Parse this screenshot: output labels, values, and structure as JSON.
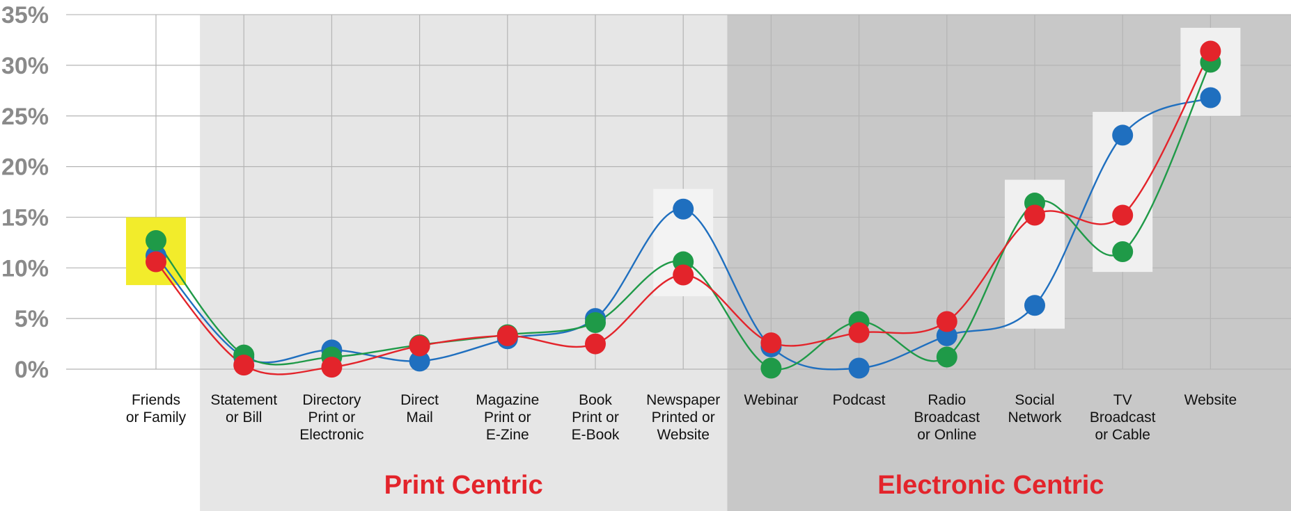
{
  "chart_data": {
    "type": "line",
    "title": "",
    "xlabel": "",
    "ylabel": "",
    "ylim": [
      0,
      35
    ],
    "y_ticks": [
      "0%",
      "5%",
      "10%",
      "15%",
      "20%",
      "25%",
      "30%",
      "35%"
    ],
    "grid": true,
    "legend": "none",
    "categories": [
      [
        "Friends",
        "or Family"
      ],
      [
        "Statement",
        "or Bill"
      ],
      [
        "Directory",
        "Print or",
        "Electronic"
      ],
      [
        "Direct",
        "Mail"
      ],
      [
        "Magazine",
        "Print or",
        "E-Zine"
      ],
      [
        "Book",
        "Print or",
        "E-Book"
      ],
      [
        "Newspaper",
        "Printed or",
        "Website"
      ],
      [
        "Webinar"
      ],
      [
        "Podcast"
      ],
      [
        "Radio",
        "Broadcast",
        "or Online"
      ],
      [
        "Social",
        "Network"
      ],
      [
        "TV",
        "Broadcast",
        "or Cable"
      ],
      [
        "Website"
      ]
    ],
    "groups": [
      {
        "label": "Print Centric",
        "from": 1,
        "to": 6,
        "color": "#e6e6e6"
      },
      {
        "label": "Electronic Centric",
        "from": 7,
        "to": 12,
        "color": "#c8c8c8"
      }
    ],
    "highlights": [
      {
        "index": 0,
        "range": [
          8.3,
          15.0
        ],
        "color": "#f2ec2b"
      },
      {
        "index": 6,
        "range": [
          7.2,
          17.8
        ],
        "color": "#f3f3f3"
      },
      {
        "index": 10,
        "range": [
          4.0,
          18.7
        ],
        "color": "#f0f0f0"
      },
      {
        "index": 11,
        "range": [
          9.6,
          25.4
        ],
        "color": "#f0f0f0"
      },
      {
        "index": 12,
        "range": [
          25.0,
          33.7
        ],
        "color": "#f0f0f0"
      }
    ],
    "series": [
      {
        "color": "#1f6fbf",
        "values": [
          11.2,
          1.2,
          1.9,
          0.8,
          3.0,
          5.0,
          15.8,
          2.2,
          0.1,
          3.3,
          6.3,
          23.1,
          26.8
        ]
      },
      {
        "color": "#1f9a48",
        "values": [
          12.7,
          1.4,
          1.2,
          2.4,
          3.4,
          4.6,
          10.6,
          0.1,
          4.7,
          1.2,
          16.4,
          11.6,
          30.3
        ]
      },
      {
        "color": "#e3242b",
        "values": [
          10.6,
          0.4,
          0.2,
          2.3,
          3.3,
          2.5,
          9.3,
          2.6,
          3.6,
          4.7,
          15.2,
          15.2,
          31.4
        ]
      }
    ]
  }
}
